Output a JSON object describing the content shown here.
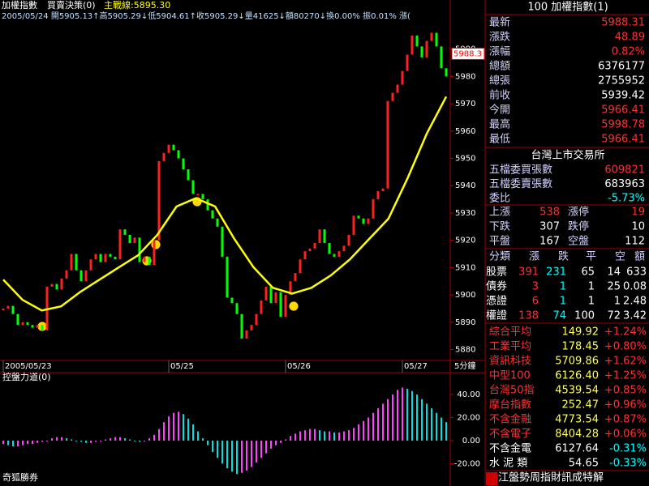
{
  "header": {
    "line1": [
      "加權指數",
      "買賣決策(0)",
      "主戰線:5895.30"
    ],
    "line2": "2005/05/24 開5905.13↑高5905.29↓低5904.61↑收5905.29↓量41625↓額80270↓換0.00% 振0.01% 漲("
  },
  "chart_data": [
    {
      "type": "line",
      "xlim": [
        0,
        91
      ],
      "ylim": [
        5876,
        6008
      ],
      "yticks": [
        5880,
        5890,
        5900,
        5910,
        5920,
        5930,
        5940,
        5950,
        5960,
        5970,
        5980,
        5990
      ],
      "xticks": [
        {
          "value": 0,
          "label": "2005/05/23"
        },
        {
          "value": 34,
          "label": "05/25"
        },
        {
          "value": 58,
          "label": "05/26"
        },
        {
          "value": 82,
          "label": "05/27"
        }
      ],
      "x_label": "5分鐘",
      "last_price": 5988.3,
      "series": [
        {
          "color_up": "#ff2020",
          "color_down": "#00ff00",
          "values": [
            5895,
            5896,
            5893,
            5889,
            5890,
            5889,
            5888,
            5889,
            5887,
            5903,
            5904,
            5902,
            5906,
            5909,
            5915,
            5909,
            5905,
            5909,
            5913,
            5915,
            5912,
            5915,
            5914,
            5913,
            5924,
            5922,
            5919,
            5921,
            5912,
            5914,
            5911,
            5920,
            5949,
            5952,
            5955,
            5953,
            5950,
            5946,
            5942,
            5937,
            5937,
            5935,
            5931,
            5928,
            5925,
            5914,
            5899,
            5897,
            5893,
            5884,
            5887,
            5889,
            5893,
            5898,
            5903,
            5897,
            5901,
            5892,
            5900,
            5905,
            5908,
            5913,
            5916,
            5917,
            5919,
            5924,
            5919,
            5915,
            5914,
            5916,
            5918,
            5922,
            5929,
            5928,
            5926,
            5928,
            5935,
            5938,
            5939,
            5971,
            5974,
            5977,
            5982,
            5988,
            5995,
            5991,
            5987,
            5993,
            5996,
            5991,
            5983,
            5980
          ]
        },
        {
          "color": "#ffff00",
          "values": [
            5905.6,
            5898.2,
            5894.3,
            5895.8,
            5901.1,
            5905.6,
            5910.1,
            5914.5,
            5922,
            5932.4,
            5935.4,
            5932.4,
            5920.5,
            5910.1,
            5902.6,
            5900.5,
            5902.6,
            5907.1,
            5913,
            5920.5,
            5927.9,
            5942.8,
            5959.2,
            5972.6
          ]
        }
      ]
    },
    {
      "type": "bar",
      "title": "控盤力道(0)",
      "ylim": [
        -38,
        59
      ],
      "color_up": "#ff40ff",
      "color_down": "#00e0e0",
      "yticks": [
        {
          "value": 40,
          "label": "40.00"
        },
        {
          "value": 20,
          "label": "20.00"
        },
        {
          "value": 0,
          "label": "0.00"
        },
        {
          "value": -20,
          "label": "-20.00"
        }
      ],
      "values": [
        -3,
        -4,
        -5,
        -5,
        -4,
        -3,
        -3,
        -2,
        -1,
        0,
        2,
        3,
        3,
        2,
        1,
        0,
        -1,
        -2,
        -2,
        -1,
        0,
        1,
        2,
        3,
        3,
        2,
        1,
        0,
        -1,
        0,
        2,
        5,
        10,
        16,
        21,
        24,
        25,
        23,
        19,
        14,
        8,
        2,
        -4,
        -10,
        -15,
        -20,
        -24,
        -27,
        -29,
        -28,
        -26,
        -23,
        -19,
        -15,
        -11,
        -7,
        -4,
        -2,
        1,
        4,
        6,
        8,
        9,
        10,
        10,
        9,
        8,
        8,
        7,
        7,
        8,
        9,
        11,
        14,
        17,
        20,
        24,
        28,
        32,
        36,
        40,
        44,
        46,
        45,
        43,
        40,
        36,
        32,
        28,
        24,
        20,
        16
      ]
    }
  ],
  "footer": "奇狐勝券",
  "quote_panel": {
    "title": "100 加權指數(1)",
    "rows": [
      [
        "最新",
        "5988.31"
      ],
      [
        "漲跌",
        "48.89"
      ],
      [
        "漲幅",
        "0.82%"
      ],
      [
        "總額",
        "6376177"
      ],
      [
        "總張",
        "2755952"
      ],
      [
        "前收",
        "5939.42"
      ],
      [
        "今開",
        "5966.41"
      ],
      [
        "最高",
        "5998.78"
      ],
      [
        "最低",
        "5966.41"
      ]
    ],
    "exchange": "台灣上市交易所",
    "order_rows": [
      [
        "五檔委買張數",
        "609821"
      ],
      [
        "五檔委賣張數",
        "683963"
      ],
      [
        "委比",
        "-5.73%"
      ]
    ],
    "breadth": [
      [
        "上漲",
        "538",
        "漲停",
        "19"
      ],
      [
        "下跌",
        "307",
        "跌停",
        "10"
      ],
      [
        "平盤",
        "167",
        "空盤",
        "112"
      ]
    ],
    "table": {
      "header": [
        "分類",
        "漲",
        "跌",
        "平",
        "空",
        "額"
      ],
      "rows": [
        [
          "股票",
          "391",
          "231",
          "65",
          "14",
          "633"
        ],
        [
          "債券",
          "3",
          "1",
          "1",
          "25",
          "0.08"
        ],
        [
          "憑證",
          "6",
          "1",
          "1",
          "1",
          "2.48"
        ],
        [
          "權證",
          "138",
          "74",
          "100",
          "72",
          "3.42"
        ]
      ]
    },
    "indices": [
      [
        "綜合平均",
        "149.92",
        "+1.24%"
      ],
      [
        "工業平均",
        "178.45",
        "+0.80%"
      ],
      [
        "資訊科技",
        "5709.86",
        "+1.62%"
      ],
      [
        "中型100",
        "6126.40",
        "+1.25%"
      ],
      [
        "台灣50指",
        "4539.54",
        "+0.85%"
      ],
      [
        "摩台指數",
        "252.47",
        "+0.96%"
      ],
      [
        "不含金融",
        "4773.54",
        "+0.87%"
      ],
      [
        "不含電子",
        "8404.28",
        "+0.06%"
      ],
      [
        "不含金電",
        "6127.64",
        "-0.31%"
      ],
      [
        "水 泥 類",
        "54.65",
        "-0.33%"
      ]
    ],
    "ticker": "江盤勢周指財訊成特解"
  }
}
